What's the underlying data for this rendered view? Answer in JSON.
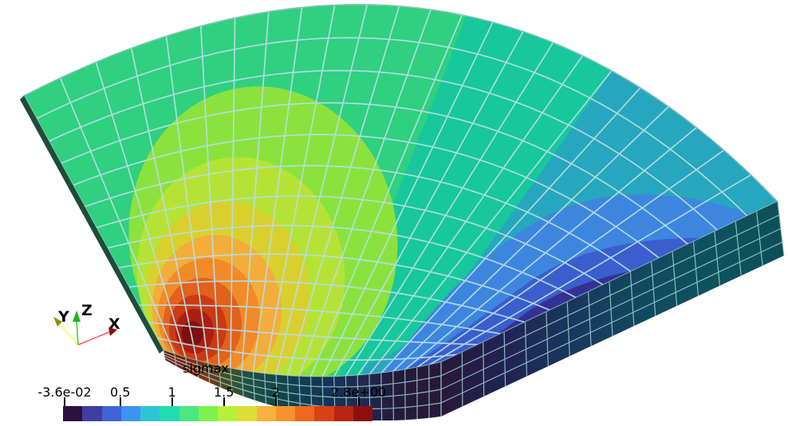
{
  "window": {
    "background": "#ffffff"
  },
  "viewport": {
    "description": "3D view of a quarter-annulus hexahedral FEM mesh colored by the sigmax stress field",
    "mesh_line_color": "#b7dde2",
    "side_mesh_line_color": "#9fd2cf",
    "edge_color": "#2f6e5f",
    "surface_bands": {
      "green": "#2fd080",
      "teal": "#16c89c",
      "cyan": "#26a7bd",
      "light_blue": "#3c86e0",
      "blue": "#3a5ecd",
      "indigo": "#353194",
      "purple": "#281638",
      "yellow_green": "#8be23c",
      "lime_yellow": "#b5e335",
      "yellow": "#d9d02f",
      "amber": "#f3ad39",
      "orange": "#f28a28",
      "deep_orange": "#e2611b",
      "red_orange": "#cb3a12",
      "red": "#ad1e11",
      "dark_red": "#7f0f0f"
    },
    "side_gradients": {
      "inner": [
        [
          0,
          "#6b1409"
        ],
        [
          0.1,
          "#8c2410"
        ],
        [
          0.17,
          "#6e3c16"
        ],
        [
          0.24,
          "#3f4f2a"
        ],
        [
          0.32,
          "#1c5045"
        ],
        [
          0.45,
          "#12424f"
        ],
        [
          0.6,
          "#173357"
        ],
        [
          0.72,
          "#1f2a50"
        ],
        [
          0.84,
          "#241a3c"
        ],
        [
          1,
          "#281838"
        ]
      ],
      "right": [
        [
          0,
          "#281838"
        ],
        [
          0.2,
          "#202455"
        ],
        [
          0.4,
          "#17395e"
        ],
        [
          0.6,
          "#114a5e"
        ],
        [
          0.8,
          "#0e525e"
        ],
        [
          1,
          "#0d4f58"
        ]
      ],
      "left_face": "#1d4d38"
    }
  },
  "axes_triad": {
    "x_label": "X",
    "y_label": "Y",
    "z_label": "Z",
    "x_line_color": "#ff5c5c",
    "x_cone_color": "#7e1200",
    "y_line_color": "#ffff4f",
    "y_cone_color": "#8f8f00",
    "z_line_color": "#3fd62c",
    "z_cone_color": "#1db31d",
    "label_color": "#0a0a0a"
  },
  "colorbar": {
    "title": "sigmax",
    "min": -0.036,
    "max": 2.8,
    "min_label": "-3.6e-02",
    "max_label": "2.8e+00",
    "ticks": [
      {
        "label": "-3.6e-02",
        "value": -0.036
      },
      {
        "label": "0.5",
        "value": 0.5
      },
      {
        "label": "1",
        "value": 1
      },
      {
        "label": "1.5",
        "value": 1.5
      },
      {
        "label": "2",
        "value": 2
      },
      {
        "label": "2.8e+00",
        "value": 2.8
      }
    ],
    "colors": [
      "#2b1040",
      "#403da0",
      "#3f63d9",
      "#3e93ee",
      "#2cc5d5",
      "#23ddae",
      "#4ce87f",
      "#7cf24f",
      "#b8ef3a",
      "#dedd33",
      "#f7b13c",
      "#f9912e",
      "#ee6820",
      "#d84316",
      "#bb2414",
      "#8c0f10"
    ]
  },
  "chart_data": {
    "type": "heatmap",
    "title": "sigmax",
    "legend_position": "bottom-left",
    "value_range": [
      -0.036,
      2.8
    ],
    "tick_values": [
      -0.036,
      0.5,
      1,
      1.5,
      2,
      2.8
    ],
    "tick_labels": [
      "-3.6e-02",
      "0.5",
      "1",
      "1.5",
      "2",
      "2.8e+00"
    ],
    "n_color_bands": 16,
    "band_colors": [
      "#2b1040",
      "#403da0",
      "#3f63d9",
      "#3e93ee",
      "#2cc5d5",
      "#23ddae",
      "#4ce87f",
      "#7cf24f",
      "#b8ef3a",
      "#dedd33",
      "#f7b13c",
      "#f9912e",
      "#ee6820",
      "#d84316",
      "#bb2414",
      "#8c0f10"
    ],
    "geometry": "quarter annulus (90-degree cylinder sector) solid, ~24 angular x 13 radial x 4 thickness hexahedral elements",
    "field_summary": [
      {
        "region": "inner radius at left (90°) edge",
        "approx_value": 2.8,
        "appearance": "dark red hot spot"
      },
      {
        "region": "upper-left surface",
        "approx_value": 1.1,
        "appearance": "green"
      },
      {
        "region": "outer-right surface",
        "approx_value": 0.7,
        "appearance": "teal/cyan"
      },
      {
        "region": "lower-right surface",
        "approx_value": 0.3,
        "appearance": "blue"
      },
      {
        "region": "inner radius at right (0°) edge",
        "approx_value": -0.036,
        "appearance": "dark purple minimum"
      }
    ]
  }
}
